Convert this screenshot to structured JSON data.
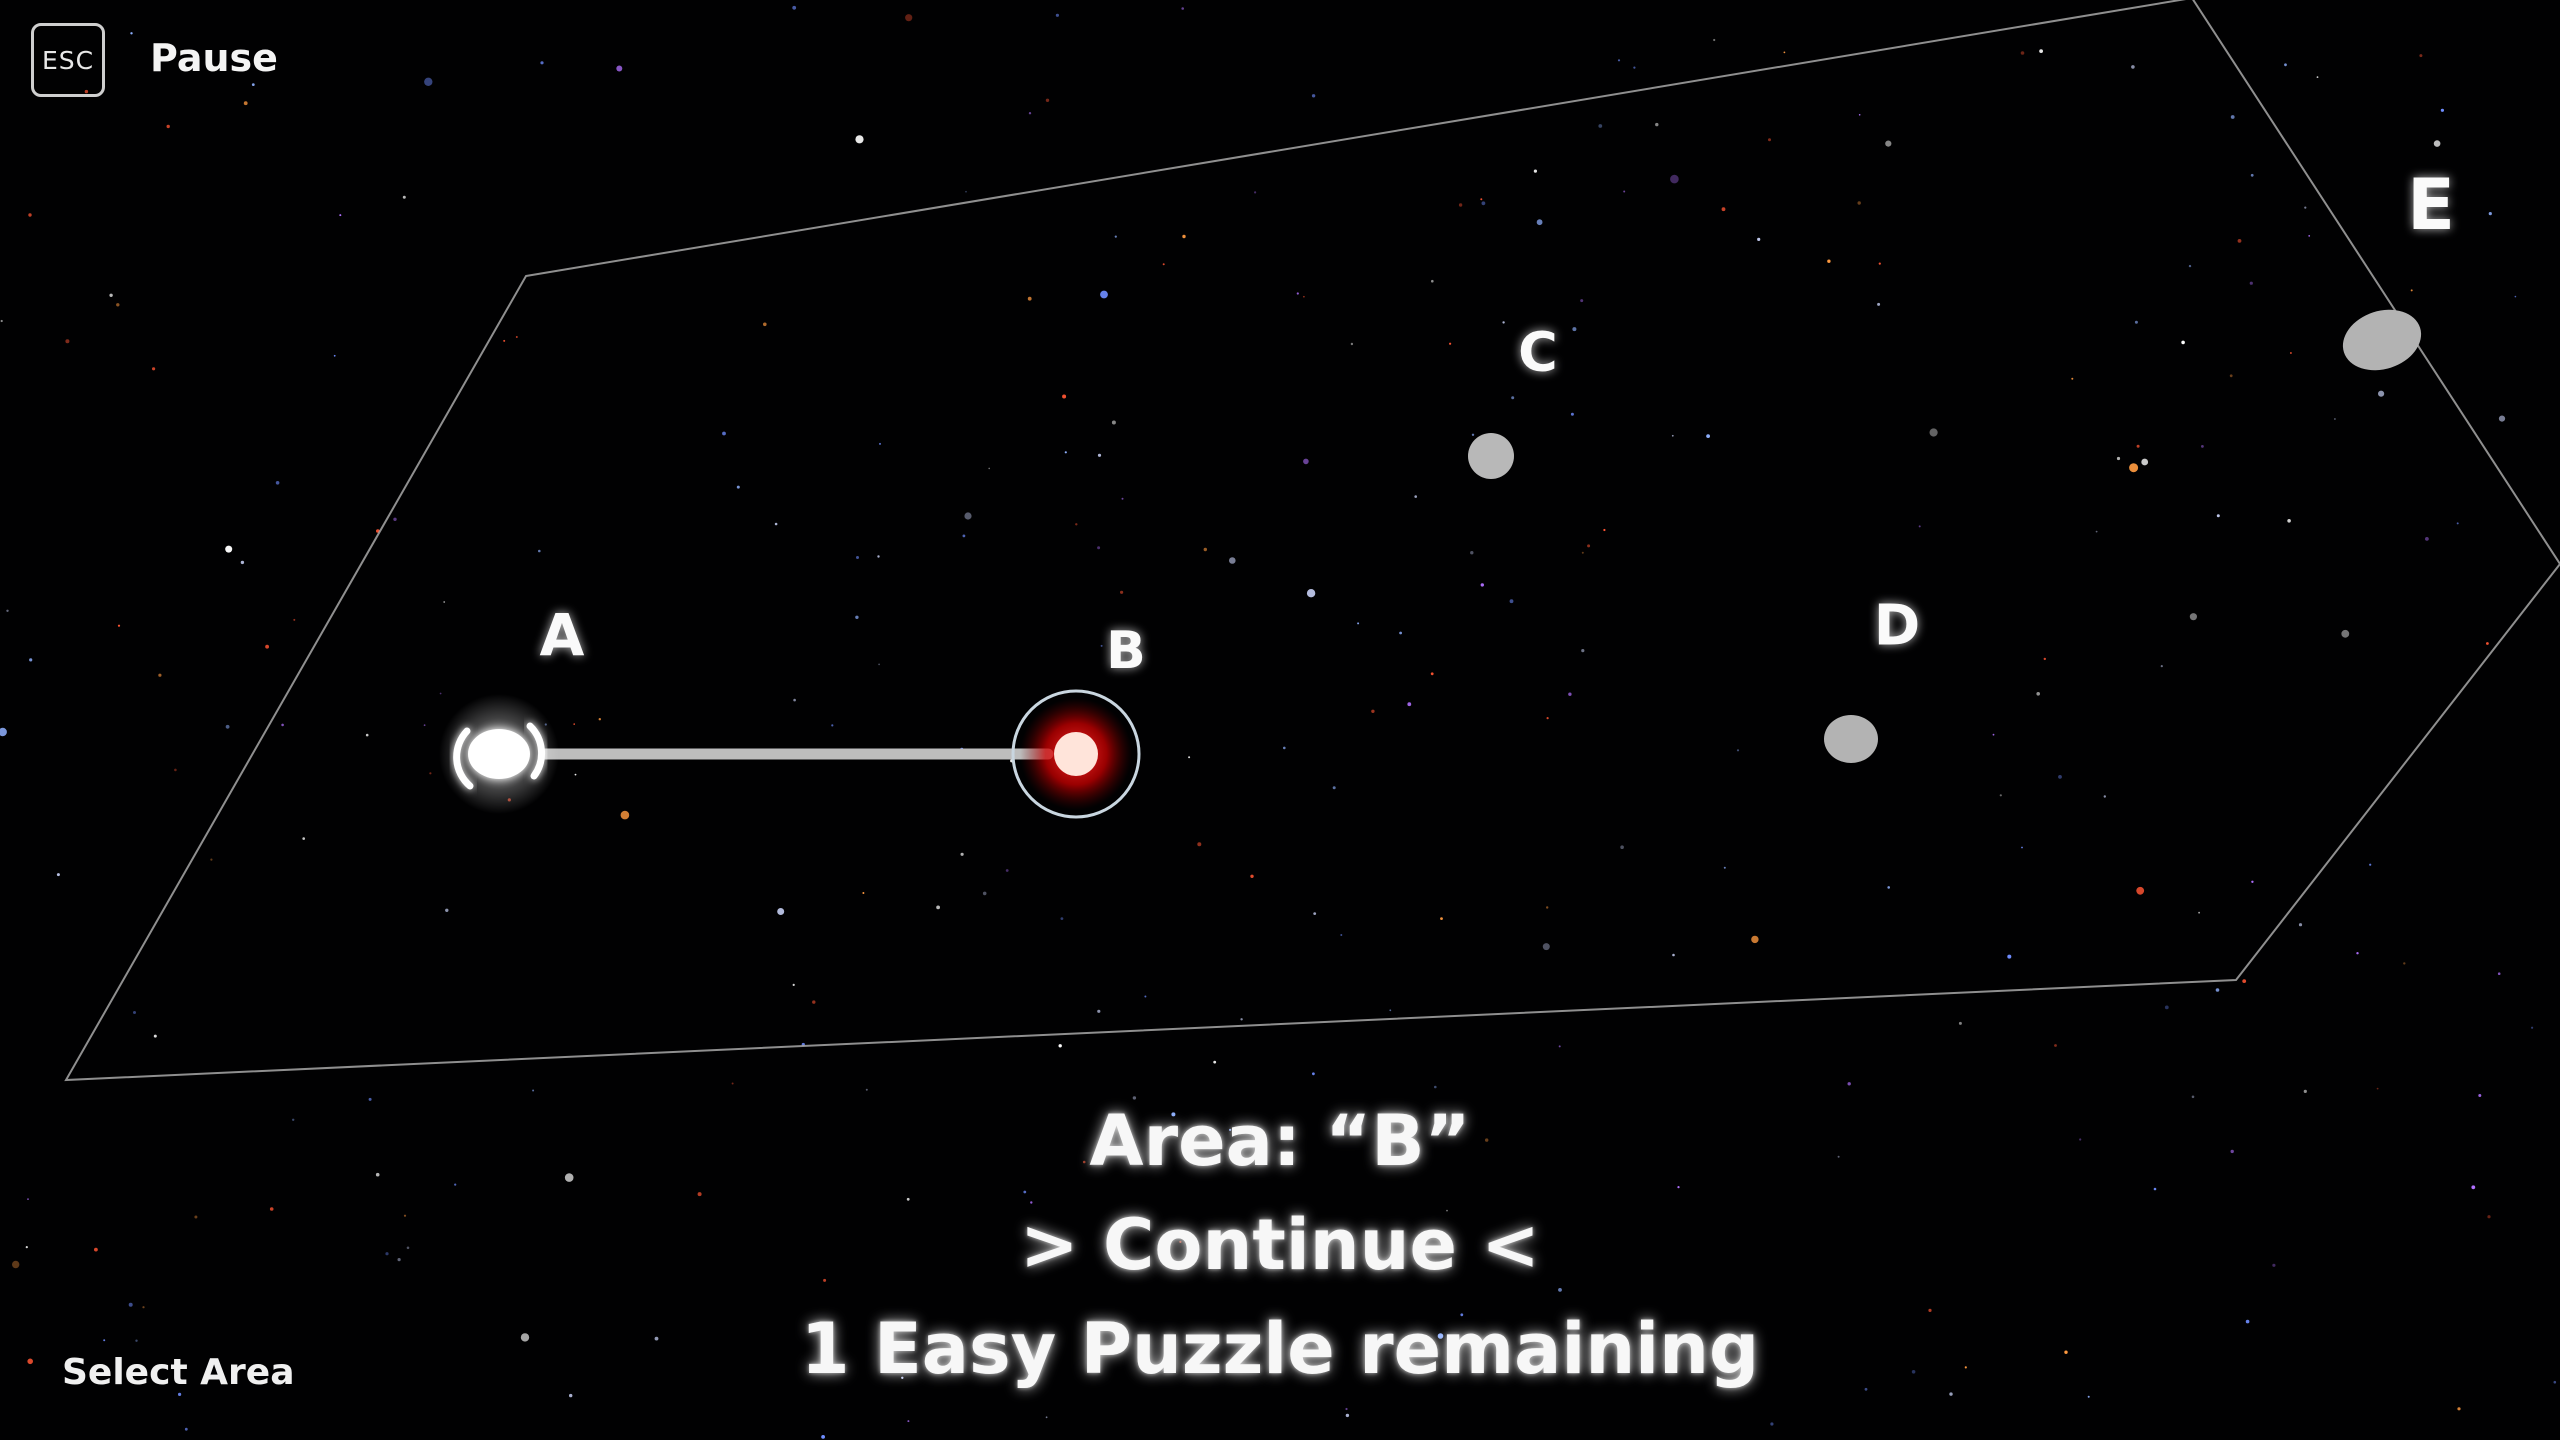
{
  "hud": {
    "esc_key": "ESC",
    "pause_label": "Pause",
    "select_area_hint": "Select Area"
  },
  "map": {
    "nodes": [
      {
        "id": "A",
        "label": "A",
        "state": "current-position",
        "color": "#ffffff"
      },
      {
        "id": "B",
        "label": "B",
        "state": "selected",
        "color": "#ff1a1a"
      },
      {
        "id": "C",
        "label": "C",
        "state": "locked",
        "color": "#b5b5b5"
      },
      {
        "id": "D",
        "label": "D",
        "state": "locked",
        "color": "#b5b5b5"
      },
      {
        "id": "E",
        "label": "E",
        "state": "locked",
        "color": "#b5b5b5"
      }
    ],
    "connections": [
      [
        "A",
        "B"
      ]
    ]
  },
  "panel": {
    "area_title": "Area: “B”",
    "continue_label": "> Continue <",
    "puzzles_remaining": "1 Easy Puzzle remaining"
  },
  "colors": {
    "background": "#010102",
    "selection_red": "#ff1a1a",
    "locked_grey": "#b5b5b5",
    "text": "#f7f7f7"
  }
}
